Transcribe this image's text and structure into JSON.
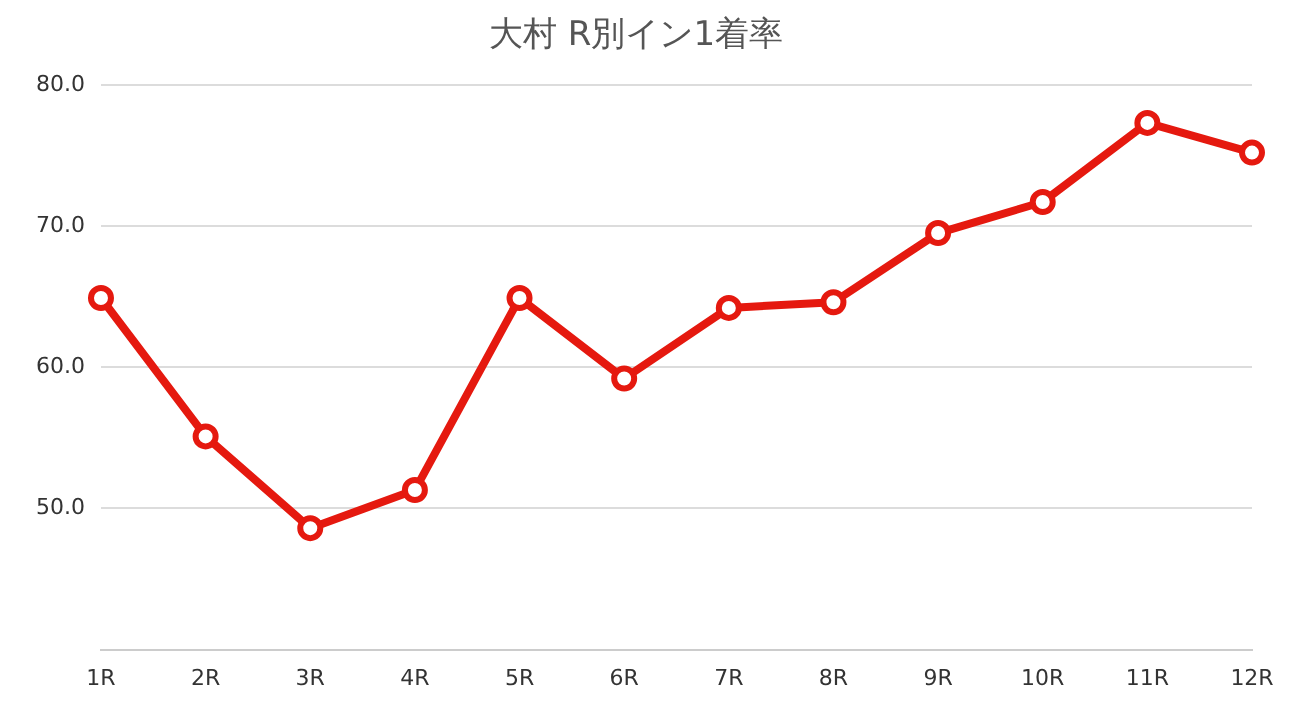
{
  "chart_data": {
    "type": "line",
    "title": "大村 R別イン1着率",
    "categories": [
      "1R",
      "2R",
      "3R",
      "4R",
      "5R",
      "6R",
      "7R",
      "8R",
      "9R",
      "10R",
      "11R",
      "12R"
    ],
    "series": [
      {
        "color": "#e5190f",
        "values": [
          64.9,
          55.1,
          48.6,
          51.3,
          64.9,
          59.2,
          64.2,
          64.6,
          69.5,
          71.7,
          77.3,
          75.2
        ]
      }
    ],
    "ylim": [
      40,
      80
    ],
    "yticks": [
      {
        "value": 40,
        "label": null
      },
      {
        "value": 50,
        "label": "50.0"
      },
      {
        "value": 60,
        "label": "60.0"
      },
      {
        "value": 70,
        "label": "70.0"
      },
      {
        "value": 80,
        "label": "80.0"
      }
    ],
    "grid": "y",
    "legend": false,
    "marker": "circle",
    "line_style": "solid"
  }
}
